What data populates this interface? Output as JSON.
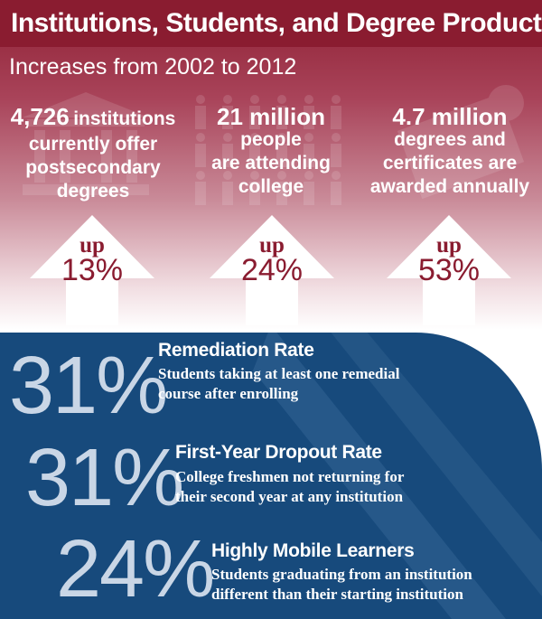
{
  "header": {
    "title": "Institutions, Students, and Degree Production",
    "subtitle": "Increases from 2002 to 2012"
  },
  "stats": [
    {
      "number": "4,726",
      "lines": [
        "institutions",
        "currently offer",
        "postsecondary",
        "degrees"
      ],
      "change_label": "up",
      "change_value": "13%",
      "icon": "building-columns-icon"
    },
    {
      "number": "21 million",
      "lines": [
        "people",
        "are attending",
        "college"
      ],
      "change_label": "up",
      "change_value": "24%",
      "icon": "people-crowd-icon"
    },
    {
      "number": "4.7 million",
      "lines": [
        "degrees and",
        "certificates are",
        "awarded annually"
      ],
      "change_label": "up",
      "change_value": "53%",
      "icon": "diploma-icon"
    }
  ],
  "rates": [
    {
      "value": "31%",
      "heading": "Remediation Rate",
      "lines": [
        "Students taking at least one remedial",
        "course after enrolling"
      ]
    },
    {
      "value": "31%",
      "heading": "First-Year Dropout Rate",
      "lines": [
        "College freshmen not returning for",
        "their second year at any institution"
      ]
    },
    {
      "value": "24%",
      "heading": "Highly Mobile Learners",
      "lines": [
        "Students graduating from an institution",
        "different than their starting institution"
      ]
    }
  ],
  "colors": {
    "maroon": "#8a1c30",
    "navy": "#174a7c",
    "light_blue": "#c9d6e6",
    "white": "#ffffff"
  }
}
